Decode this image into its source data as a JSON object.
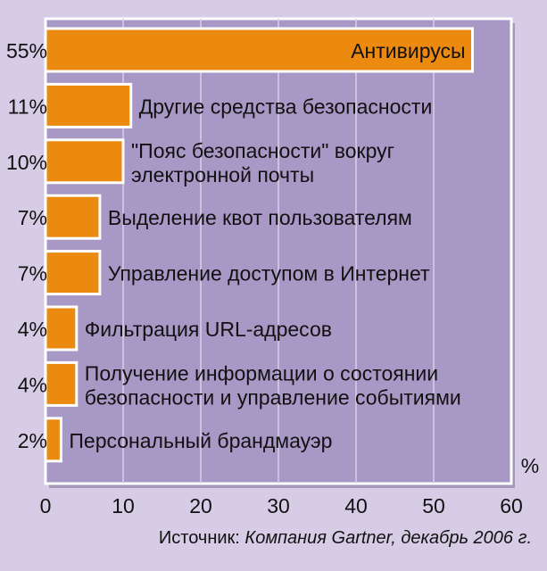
{
  "chart_data": {
    "type": "bar",
    "orientation": "horizontal",
    "categories": [
      [
        "Антивирусы"
      ],
      [
        "Другие средства безопасности"
      ],
      [
        "\"Пояс безопасности\" вокруг",
        "электронной почты"
      ],
      [
        "Выделение квот пользователям"
      ],
      [
        "Управление доступом в Интернет"
      ],
      [
        "Фильтрация URL-адресов"
      ],
      [
        "Получение информации о состоянии",
        "безопасности и управление событиями"
      ],
      [
        "Персональный брандмауэр"
      ]
    ],
    "values": [
      55,
      11,
      10,
      7,
      7,
      4,
      4,
      2
    ],
    "value_labels": [
      "55%",
      "11%",
      "10%",
      "7%",
      "7%",
      "4%",
      "4%",
      "2%"
    ],
    "xlim": [
      0,
      60
    ],
    "xticks": [
      "0",
      "10",
      "20",
      "30",
      "40",
      "50",
      "60"
    ],
    "xunit": "%",
    "grid": true,
    "source_prefix": "Источник: ",
    "source_text": "Компания Gartner, декабрь 2006 г.",
    "colors": {
      "bar": "#ec8a10",
      "plot_bg": "#a898c6",
      "page_bg": "#d6cce6",
      "bar_border": "#ffffff"
    }
  }
}
